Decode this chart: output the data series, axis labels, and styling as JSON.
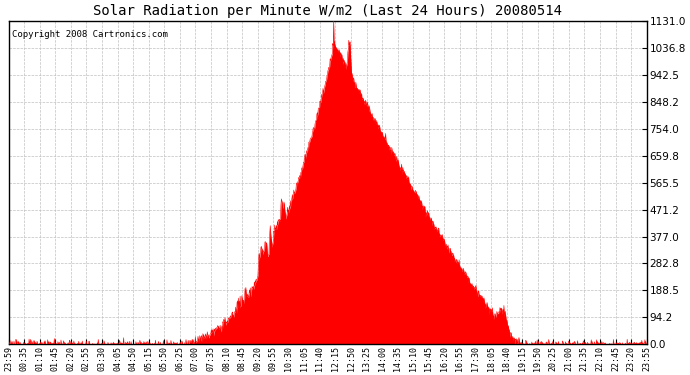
{
  "title": "Solar Radiation per Minute W/m2 (Last 24 Hours) 20080514",
  "copyright": "Copyright 2008 Cartronics.com",
  "fill_color": "#ff0000",
  "line_color": "#ff0000",
  "background_color": "#ffffff",
  "plot_bg_color": "#ffffff",
  "grid_color": "#c0c0c0",
  "dashed_line_color": "#ff0000",
  "yticks": [
    0.0,
    94.2,
    188.5,
    282.8,
    377.0,
    471.2,
    565.5,
    659.8,
    754.0,
    848.2,
    942.5,
    1036.8,
    1131.0
  ],
  "ymax": 1131.0,
  "ymin": 0.0,
  "xtick_labels": [
    "23:59",
    "00:35",
    "01:10",
    "01:45",
    "02:20",
    "02:55",
    "03:30",
    "04:05",
    "04:50",
    "05:15",
    "05:50",
    "06:25",
    "07:00",
    "07:35",
    "08:10",
    "08:45",
    "09:20",
    "09:55",
    "10:30",
    "11:05",
    "11:40",
    "12:15",
    "12:50",
    "13:25",
    "14:00",
    "14:35",
    "15:10",
    "15:45",
    "16:20",
    "16:55",
    "17:30",
    "18:05",
    "18:40",
    "19:15",
    "19:50",
    "20:25",
    "21:00",
    "21:35",
    "22:10",
    "22:45",
    "23:20",
    "23:55"
  ],
  "num_points": 1440,
  "sunrise_min": 355,
  "sunset_min": 1155,
  "peak_min": 735
}
